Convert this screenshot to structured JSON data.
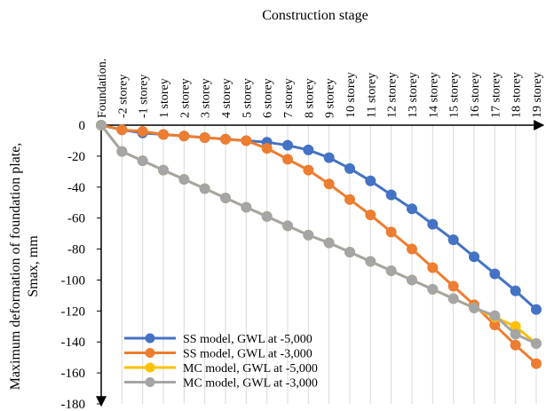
{
  "chart_data": {
    "type": "line",
    "title": "Construction stage",
    "ylabel": [
      "Maximum deformation of foundation plate,",
      "Smax, mm"
    ],
    "categories": [
      "Foundation.",
      "-2 storey",
      "-1 storey",
      "1 storey",
      "2 storey",
      "3 storey",
      "4 storey",
      "5 storey",
      "6 storey",
      "7 storey",
      "8 storey",
      "9 storey",
      "10 storey",
      "11 storey",
      "12 storey",
      "13 storey",
      "14 storey",
      "15 storey",
      "16 storey",
      "17 storey",
      "18 storey",
      "19 storey"
    ],
    "series": [
      {
        "name": "SS model, GWL at -5,000",
        "color": "#4472c4",
        "values": [
          0,
          -3,
          -5,
          -6,
          -7,
          -8,
          -9,
          -10,
          -11,
          -13,
          -16,
          -21,
          -28,
          -36,
          -45,
          -54,
          -64,
          -74,
          -85,
          -96,
          -107,
          -119
        ]
      },
      {
        "name": "SS model, GWL at -3,000",
        "color": "#ed7d31",
        "values": [
          0,
          -3,
          -4,
          -6,
          -7,
          -8,
          -9,
          -10,
          -15,
          -22,
          -29,
          -38,
          -48,
          -58,
          -69,
          -80,
          -92,
          -104,
          -116,
          -129,
          -142,
          -154
        ]
      },
      {
        "name": "MC model, GWL at -5,000",
        "color": "#ffc000",
        "values": [
          0,
          -17,
          -23,
          -29,
          -35,
          -41,
          -47,
          -53,
          -59,
          -65,
          -71,
          -76,
          -82,
          -88,
          -94,
          -100,
          -106,
          -112,
          -118,
          -124,
          -130,
          -141
        ]
      },
      {
        "name": "MC model, GWL at -3,000",
        "color": "#a5a5a5",
        "values": [
          0,
          -17,
          -23,
          -29,
          -35,
          -41,
          -47,
          -53,
          -59,
          -65,
          -71,
          -76,
          -82,
          -88,
          -94,
          -100,
          -106,
          -112,
          -118,
          -123,
          -135,
          -141
        ]
      }
    ],
    "ylim": [
      -180,
      0
    ],
    "yticks": [
      0,
      -20,
      -40,
      -60,
      -80,
      -100,
      -120,
      -140,
      -160,
      -180
    ],
    "grid": true,
    "legend": "lower left"
  }
}
